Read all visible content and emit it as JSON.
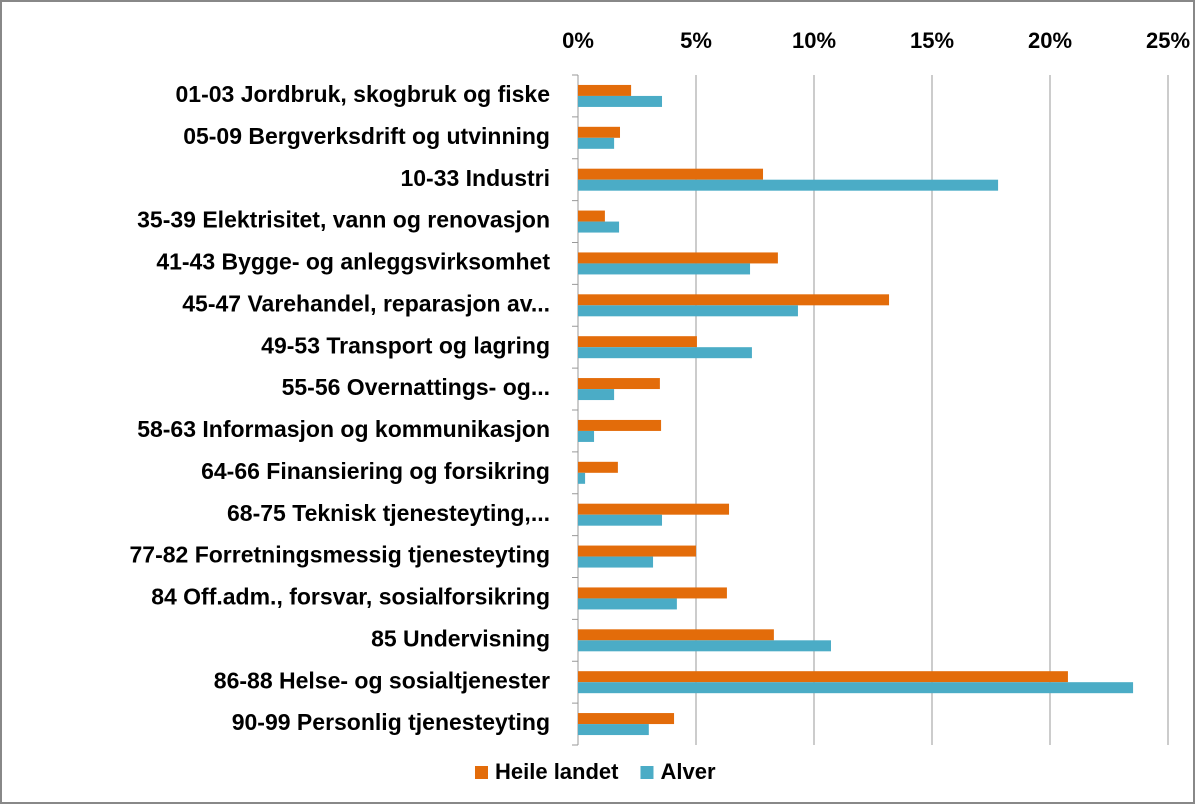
{
  "chart_data": {
    "type": "bar",
    "orientation": "horizontal",
    "categories": [
      "01-03 Jordbruk, skogbruk og fiske",
      "05-09 Bergverksdrift og utvinning",
      "10-33 Industri",
      "35-39 Elektrisitet, vann og renovasjon",
      "41-43 Bygge- og anleggsvirksomhet",
      "45-47 Varehandel, reparasjon av...",
      "49-53 Transport og lagring",
      "55-56 Overnattings- og...",
      "58-63 Informasjon og kommunikasjon",
      "64-66 Finansiering og forsikring",
      "68-75 Teknisk tjenesteyting,...",
      "77-82 Forretningsmessig tjenesteyting",
      "84 Off.adm., forsvar, sosialforsikring",
      "85 Undervisning",
      "86-88 Helse- og sosialtjenester",
      "90-99 Personlig tjenesteyting"
    ],
    "series": [
      {
        "name": "Heile landet",
        "color": "#e36c0a",
        "values": [
          2.25,
          1.78,
          7.84,
          1.14,
          8.47,
          13.18,
          5.04,
          3.47,
          3.52,
          1.69,
          6.4,
          5.0,
          6.31,
          8.3,
          20.76,
          4.07
        ]
      },
      {
        "name": "Alver",
        "color": "#4bacc6",
        "values": [
          3.56,
          1.53,
          17.8,
          1.74,
          7.29,
          9.32,
          7.37,
          1.53,
          0.68,
          0.3,
          3.56,
          3.18,
          4.19,
          10.72,
          23.52,
          3.0
        ]
      }
    ],
    "xlim": [
      0,
      25
    ],
    "xticks": [
      {
        "value": 0,
        "label": "0%"
      },
      {
        "value": 5,
        "label": "5%"
      },
      {
        "value": 10,
        "label": "10%"
      },
      {
        "value": 15,
        "label": "15%"
      },
      {
        "value": 20,
        "label": "20%"
      },
      {
        "value": 25,
        "label": "25%"
      }
    ],
    "grid": true,
    "legend": "bottom"
  }
}
